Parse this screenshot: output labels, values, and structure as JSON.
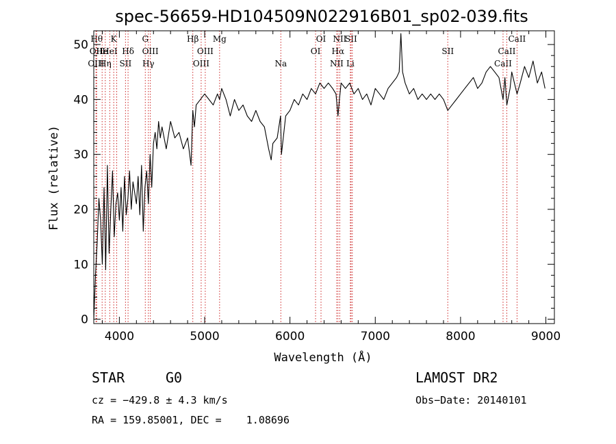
{
  "chart_data": {
    "type": "line",
    "title": "spec-56659-HD104509N022916B01_sp02-039.fits",
    "xlabel": "Wavelength (Å)",
    "ylabel": "Flux (relative)",
    "xlim": [
      3700,
      9100
    ],
    "ylim": [
      -0.8,
      52.5
    ],
    "xticks": [
      4000,
      5000,
      6000,
      7000,
      8000,
      9000
    ],
    "yticks": [
      0,
      10,
      20,
      30,
      40,
      50
    ],
    "grid": false,
    "series": [
      {
        "x": [
          3700,
          3720,
          3740,
          3760,
          3780,
          3800,
          3820,
          3840,
          3860,
          3880,
          3900,
          3920,
          3940,
          3960,
          3980,
          4000,
          4020,
          4040,
          4060,
          4080,
          4100,
          4120,
          4140,
          4160,
          4180,
          4200,
          4220,
          4240,
          4260,
          4280,
          4300,
          4320,
          4340,
          4360,
          4380,
          4400,
          4420,
          4440,
          4460,
          4480,
          4500,
          4550,
          4600,
          4650,
          4700,
          4750,
          4800,
          4840,
          4861,
          4880,
          4900,
          4950,
          5000,
          5050,
          5100,
          5150,
          5175,
          5200,
          5250,
          5300,
          5350,
          5400,
          5450,
          5500,
          5550,
          5600,
          5650,
          5700,
          5750,
          5780,
          5800,
          5850,
          5890,
          5900,
          5950,
          6000,
          6050,
          6100,
          6150,
          6200,
          6250,
          6300,
          6350,
          6400,
          6450,
          6500,
          6540,
          6563,
          6580,
          6600,
          6650,
          6700,
          6750,
          6800,
          6850,
          6900,
          6950,
          7000,
          7050,
          7100,
          7150,
          7200,
          7250,
          7280,
          7300,
          7320,
          7350,
          7400,
          7450,
          7500,
          7550,
          7600,
          7650,
          7700,
          7750,
          7800,
          7850,
          7900,
          7950,
          8000,
          8050,
          8100,
          8150,
          8200,
          8250,
          8300,
          8350,
          8400,
          8450,
          8498,
          8520,
          8542,
          8580,
          8600,
          8662,
          8700,
          8750,
          8800,
          8850,
          8900,
          8950,
          8990
        ],
        "y": [
          0,
          8,
          14,
          22,
          18,
          10,
          24,
          9,
          28,
          12,
          20,
          27,
          15,
          21,
          23,
          18,
          24,
          16,
          26,
          19,
          22,
          27,
          20,
          25,
          23,
          21,
          26,
          19,
          28,
          16,
          24,
          27,
          21,
          30,
          24,
          32,
          34,
          31,
          36,
          33,
          35,
          31,
          36,
          33,
          34,
          31,
          33,
          28,
          38,
          35,
          39,
          40,
          41,
          40,
          39,
          41,
          40,
          42,
          40,
          37,
          40,
          38,
          39,
          37,
          36,
          38,
          36,
          35,
          31,
          29,
          32,
          33,
          37,
          30,
          37,
          38,
          40,
          39,
          41,
          40,
          42,
          41,
          43,
          42,
          43,
          42,
          41,
          37,
          40,
          43,
          42,
          43,
          41,
          42,
          40,
          41,
          39,
          42,
          41,
          40,
          42,
          43,
          44,
          45,
          52,
          45,
          43,
          41,
          42,
          40,
          41,
          40,
          41,
          40,
          41,
          40,
          38,
          39,
          40,
          41,
          42,
          43,
          44,
          42,
          43,
          45,
          46,
          45,
          44,
          40,
          44,
          39,
          42,
          45,
          41,
          43,
          46,
          44,
          47,
          43,
          45,
          42
        ]
      }
    ],
    "lines": [
      {
        "x": 3734,
        "row": 0,
        "text": "Hθ"
      },
      {
        "x": 3727,
        "row": 1,
        "text": "OII"
      },
      {
        "x": 3727,
        "row": 2,
        "text": "OIII"
      },
      {
        "x": 3798,
        "row": 1,
        "text": "He"
      },
      {
        "x": 3835,
        "row": 2,
        "text": "Hη"
      },
      {
        "x": 3888,
        "row": 1,
        "text": "HeI"
      },
      {
        "x": 3934,
        "row": 0,
        "text": "K"
      },
      {
        "x": 3969,
        "row": 1,
        "text": ""
      },
      {
        "x": 4102,
        "row": 1,
        "text": "Hδ"
      },
      {
        "x": 4072,
        "row": 2,
        "text": "SII"
      },
      {
        "x": 4304,
        "row": 0,
        "text": "G"
      },
      {
        "x": 4340,
        "row": 2,
        "text": "Hγ"
      },
      {
        "x": 4363,
        "row": 1,
        "text": "OIII"
      },
      {
        "x": 4861,
        "row": 0,
        "text": "Hβ"
      },
      {
        "x": 4959,
        "row": 2,
        "text": "OIII"
      },
      {
        "x": 5007,
        "row": 1,
        "text": "OIII"
      },
      {
        "x": 5175,
        "row": 0,
        "text": "Mg"
      },
      {
        "x": 5893,
        "row": 2,
        "text": "Na"
      },
      {
        "x": 6300,
        "row": 1,
        "text": "OI"
      },
      {
        "x": 6364,
        "row": 0,
        "text": "OI"
      },
      {
        "x": 6548,
        "row": 2,
        "text": "NII"
      },
      {
        "x": 6563,
        "row": 1,
        "text": "Hα"
      },
      {
        "x": 6584,
        "row": 0,
        "text": "NII"
      },
      {
        "x": 6708,
        "row": 2,
        "text": "Li"
      },
      {
        "x": 6716,
        "row": 0,
        "text": "SII"
      },
      {
        "x": 6731,
        "row": 0,
        "text": ""
      },
      {
        "x": 7850,
        "row": 1,
        "text": "SII"
      },
      {
        "x": 8498,
        "row": 2,
        "text": "CaII"
      },
      {
        "x": 8542,
        "row": 1,
        "text": "CaII"
      },
      {
        "x": 8662,
        "row": 0,
        "text": "CaII"
      }
    ]
  },
  "info": {
    "class": "STAR",
    "subclass": "G0",
    "survey": "LAMOST DR2",
    "cz": "cz = −429.8 ± 4.3 km/s",
    "obsdate": "Obs−Date: 20140101",
    "radec": "RA = 159.85001, DEC =    1.08696"
  },
  "colors": {
    "line": "#000000",
    "marker": "#cc2222"
  }
}
